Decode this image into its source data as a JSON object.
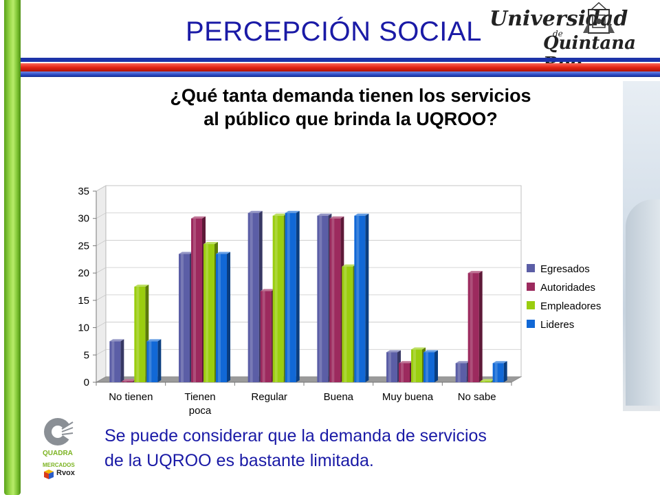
{
  "slide": {
    "title": "PERCEPCIÓN SOCIAL",
    "bottom_text_line1": "Se puede considerar que la demanda de servicios",
    "bottom_text_line2": "de la UQROO es bastante limitada."
  },
  "logo_university": {
    "line1": "Universidad",
    "line2": "de",
    "line3": "Quintana Roo"
  },
  "logo_quadra": {
    "line1": "QUADRA",
    "line2": "MERCADOS",
    "line3": "Rvox"
  },
  "colors": {
    "title_blue": "#1a1aa6",
    "stripe_red": "#e32414",
    "stripe_blue": "#1d33a8",
    "left_bar_green": "#7cc232"
  },
  "chart_data": {
    "type": "bar",
    "title_line1": "¿Qué tanta demanda tienen los servicios",
    "title_line2": "al público que brinda la UQROO?",
    "categories": [
      "No tienen",
      "Tienen poca",
      "Regular",
      "Buena",
      "Muy buena",
      "No sabe"
    ],
    "category_lines": [
      [
        "No tienen"
      ],
      [
        "Tienen",
        "poca"
      ],
      [
        "Regular"
      ],
      [
        "Buena"
      ],
      [
        "Muy buena"
      ],
      [
        "No sabe"
      ]
    ],
    "series": [
      {
        "name": "Egresados",
        "color": "#5b5ea6",
        "values": [
          7.5,
          23.5,
          31,
          30.5,
          5.5,
          3.5
        ]
      },
      {
        "name": "Autoridades",
        "color": "#9c2a5e",
        "values": [
          0.2,
          30,
          16.7,
          30,
          3.5,
          20
        ]
      },
      {
        "name": "Empleadores",
        "color": "#9acd0f",
        "values": [
          17.5,
          25.3,
          30.5,
          21.2,
          6,
          0.2
        ]
      },
      {
        "name": "Lideres",
        "color": "#1168d6",
        "values": [
          7.5,
          23.5,
          31,
          30.5,
          5.5,
          3.5
        ]
      }
    ],
    "ylim": [
      0,
      35
    ],
    "yticks": [
      0,
      5,
      10,
      15,
      20,
      25,
      30,
      35
    ],
    "grid": true,
    "legend_position": "right"
  }
}
